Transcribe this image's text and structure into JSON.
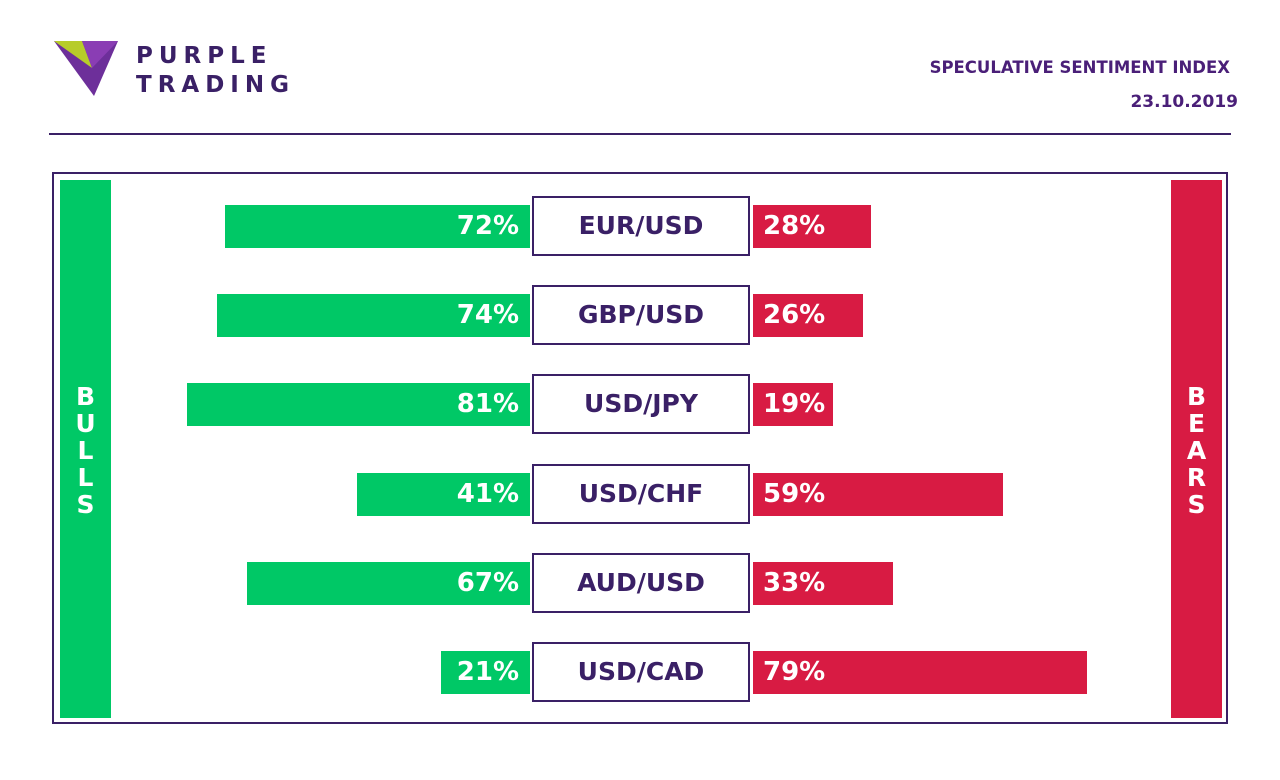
{
  "brand": {
    "line1": "PURPLE",
    "line2": "TRADING"
  },
  "header": {
    "title": "SPECULATIVE SENTIMENT INDEX",
    "date": "23.10.2019"
  },
  "side_labels": {
    "bulls": [
      "B",
      "U",
      "L",
      "L",
      "S"
    ],
    "bears": [
      "B",
      "E",
      "A",
      "R",
      "S"
    ]
  },
  "colors": {
    "bull": "#00c866",
    "bear": "#d81b43",
    "brand": "#3a2066"
  },
  "chart_data": {
    "type": "bar",
    "categories": [
      "EUR/USD",
      "GBP/USD",
      "USD/JPY",
      "USD/CHF",
      "AUD/USD",
      "USD/CAD"
    ],
    "series": [
      {
        "name": "BULLS",
        "values": [
          72,
          74,
          81,
          41,
          67,
          21
        ],
        "labels": [
          "72%",
          "74%",
          "81%",
          "41%",
          "67%",
          "21%"
        ]
      },
      {
        "name": "BEARS",
        "values": [
          28,
          26,
          19,
          59,
          33,
          79
        ],
        "labels": [
          "28%",
          "26%",
          "19%",
          "59%",
          "33%",
          "79%"
        ]
      }
    ]
  }
}
